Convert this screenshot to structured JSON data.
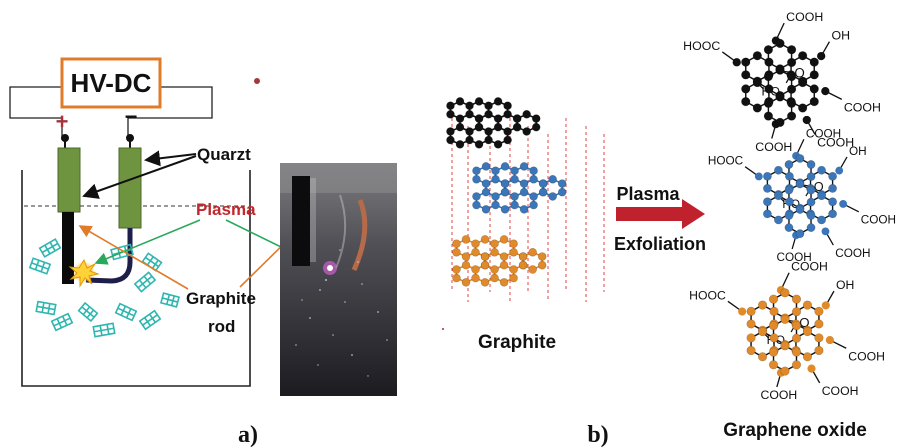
{
  "panel_a": {
    "power_supply": "HV-DC",
    "plus_sign": "+",
    "minus_sign": "−",
    "quartz_label": "Quarzt",
    "plasma_label": "Plasma",
    "graphite_label": "Graphite",
    "rod_label": "rod",
    "caption": "a)"
  },
  "panel_b": {
    "graphite_label": "Graphite",
    "arrow_top": "Plasma",
    "arrow_bottom": "Exfoliation",
    "product_label": "Graphene oxide",
    "caption": "b)",
    "groups": {
      "cooh": "COOH",
      "hooc": "HOOC",
      "oh": "OH",
      "ho": "HO",
      "o": "O"
    }
  },
  "colors": {
    "supply_border": "#e07b2a",
    "quartz_green": "#6f9440",
    "plasma_red": "#c0282d",
    "plus_red": "#a8323a",
    "layer_black": "#111111",
    "layer_blue": "#3b76b8",
    "layer_orange": "#e08a2a",
    "arrow_red": "#c0222d",
    "flake_teal": "#2fb6b0",
    "pointer_green": "#27a85a",
    "pointer_orange": "#e07b2a",
    "stack_dash": "#e04545"
  }
}
